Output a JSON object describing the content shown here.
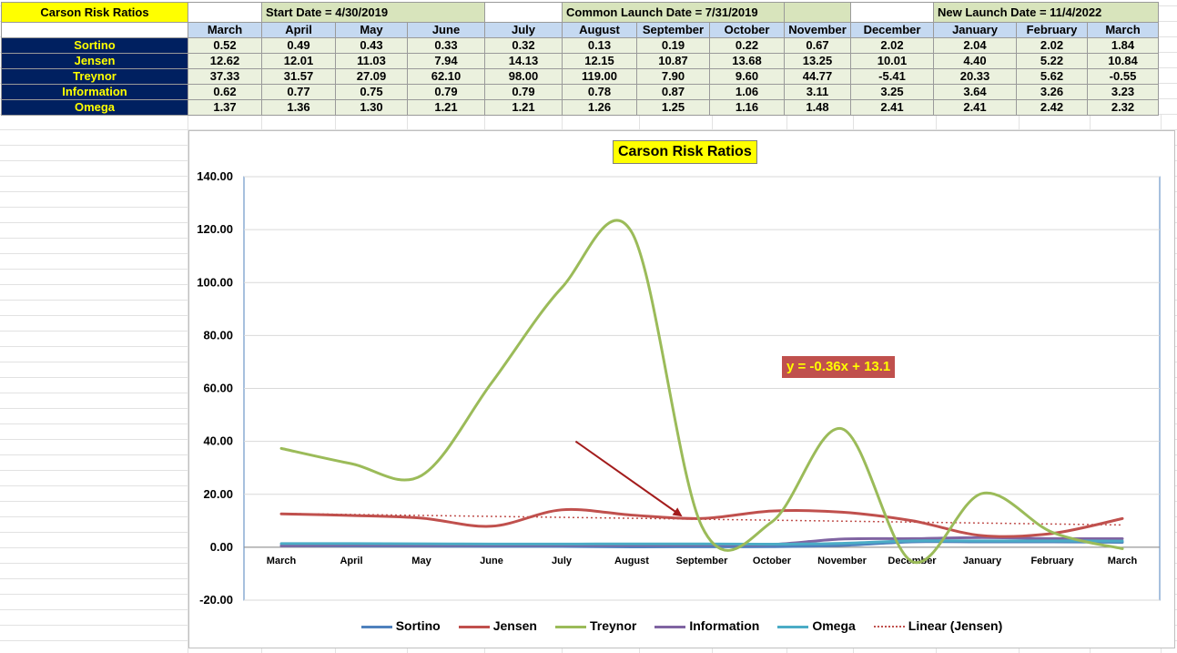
{
  "sheet": {
    "title": "Carson Risk Ratios",
    "start_date": "Start Date = 4/30/2019",
    "common_launch": "Common Launch Date = 7/31/2019",
    "new_launch": "New Launch Date = 11/4/2022",
    "months": [
      "March",
      "April",
      "May",
      "June",
      "July",
      "August",
      "September",
      "October",
      "November",
      "December",
      "January",
      "February",
      "March"
    ],
    "rows": [
      {
        "metric": "Sortino",
        "values": [
          "0.52",
          "0.49",
          "0.43",
          "0.33",
          "0.32",
          "0.13",
          "0.19",
          "0.22",
          "0.67",
          "2.02",
          "2.04",
          "2.02",
          "1.84"
        ]
      },
      {
        "metric": "Jensen",
        "values": [
          "12.62",
          "12.01",
          "11.03",
          "7.94",
          "14.13",
          "12.15",
          "10.87",
          "13.68",
          "13.25",
          "10.01",
          "4.40",
          "5.22",
          "10.84"
        ]
      },
      {
        "metric": "Treynor",
        "values": [
          "37.33",
          "31.57",
          "27.09",
          "62.10",
          "98.00",
          "119.00",
          "7.90",
          "9.60",
          "44.77",
          "-5.41",
          "20.33",
          "5.62",
          "-0.55"
        ]
      },
      {
        "metric": "Information",
        "values": [
          "0.62",
          "0.77",
          "0.75",
          "0.79",
          "0.79",
          "0.78",
          "0.87",
          "1.06",
          "3.11",
          "3.25",
          "3.64",
          "3.26",
          "3.23"
        ]
      },
      {
        "metric": "Omega",
        "values": [
          "1.37",
          "1.36",
          "1.30",
          "1.21",
          "1.21",
          "1.26",
          "1.25",
          "1.16",
          "1.48",
          "2.41",
          "2.41",
          "2.42",
          "2.32"
        ]
      }
    ]
  },
  "chart_data": {
    "type": "line",
    "title": "Carson Risk Ratios",
    "categories": [
      "March",
      "April",
      "May",
      "June",
      "July",
      "August",
      "September",
      "October",
      "November",
      "December",
      "January",
      "February",
      "March"
    ],
    "ylim": [
      -20,
      140
    ],
    "yticks": [
      "140.00",
      "120.00",
      "100.00",
      "80.00",
      "60.00",
      "40.00",
      "20.00",
      "0.00",
      "-20.00"
    ],
    "ytick_values": [
      140,
      120,
      100,
      80,
      60,
      40,
      20,
      0,
      -20
    ],
    "grid": true,
    "legend_position": "bottom",
    "series": [
      {
        "name": "Sortino",
        "color": "#4f81bd",
        "values": [
          0.52,
          0.49,
          0.43,
          0.33,
          0.32,
          0.13,
          0.19,
          0.22,
          0.67,
          2.02,
          2.04,
          2.02,
          1.84
        ]
      },
      {
        "name": "Jensen",
        "color": "#c0504d",
        "values": [
          12.62,
          12.01,
          11.03,
          7.94,
          14.13,
          12.15,
          10.87,
          13.68,
          13.25,
          10.01,
          4.4,
          5.22,
          10.84
        ]
      },
      {
        "name": "Treynor",
        "color": "#9bbb59",
        "values": [
          37.33,
          31.57,
          27.09,
          62.1,
          98.0,
          119.0,
          7.9,
          9.6,
          44.77,
          -5.41,
          20.33,
          5.62,
          -0.55
        ]
      },
      {
        "name": "Information",
        "color": "#8064a2",
        "values": [
          0.62,
          0.77,
          0.75,
          0.79,
          0.79,
          0.78,
          0.87,
          1.06,
          3.11,
          3.25,
          3.64,
          3.26,
          3.23
        ]
      },
      {
        "name": "Omega",
        "color": "#4bacc6",
        "values": [
          1.37,
          1.36,
          1.3,
          1.21,
          1.21,
          1.26,
          1.25,
          1.16,
          1.48,
          2.41,
          2.41,
          2.42,
          2.32
        ]
      }
    ],
    "trendline": {
      "name": "Linear (Jensen)",
      "color": "#c0504d",
      "equation": "y = -0.36x + 13.1",
      "slope": -0.36,
      "intercept": 13.1
    },
    "annotation": {
      "type": "arrow",
      "color": "#a31c1c",
      "from": {
        "category_index": 4.2,
        "value": 40
      },
      "to": {
        "category_index": 5.7,
        "value": 12
      }
    }
  }
}
